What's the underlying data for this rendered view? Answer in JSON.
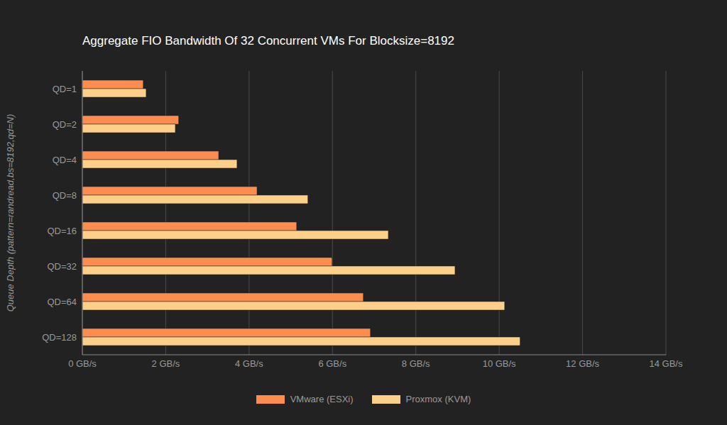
{
  "chart_data": {
    "type": "bar",
    "orientation": "horizontal",
    "title": "Aggregate FIO Bandwidth Of 32 Concurrent VMs For Blocksize=8192",
    "y_label": "Queue Depth (pattern=randread,bs=8192,qd=N)",
    "categories": [
      "QD=1",
      "QD=2",
      "QD=4",
      "QD=8",
      "QD=16",
      "QD=32",
      "QD=64",
      "QD=128"
    ],
    "series": [
      {
        "name": "VMware (ESXi)",
        "color": "#fd8d4e",
        "values": [
          1.46,
          2.31,
          3.27,
          4.19,
          5.14,
          5.99,
          6.74,
          6.91
        ]
      },
      {
        "name": "Proxmox (KVM)",
        "color": "#fdd08a",
        "values": [
          1.53,
          2.23,
          3.71,
          5.41,
          7.34,
          8.94,
          10.13,
          10.5
        ]
      }
    ],
    "xlim": [
      0,
      14
    ],
    "xticks": [
      {
        "value": 0,
        "label": "0 GB/s"
      },
      {
        "value": 2,
        "label": "2 GB/s"
      },
      {
        "value": 4,
        "label": "4 GB/s"
      },
      {
        "value": 6,
        "label": "6 GB/s"
      },
      {
        "value": 8,
        "label": "8 GB/s"
      },
      {
        "value": 10,
        "label": "10 GB/s"
      },
      {
        "value": 12,
        "label": "12 GB/s"
      },
      {
        "value": 14,
        "label": "14 GB/s"
      }
    ],
    "grid": true,
    "legend": "bottom"
  }
}
